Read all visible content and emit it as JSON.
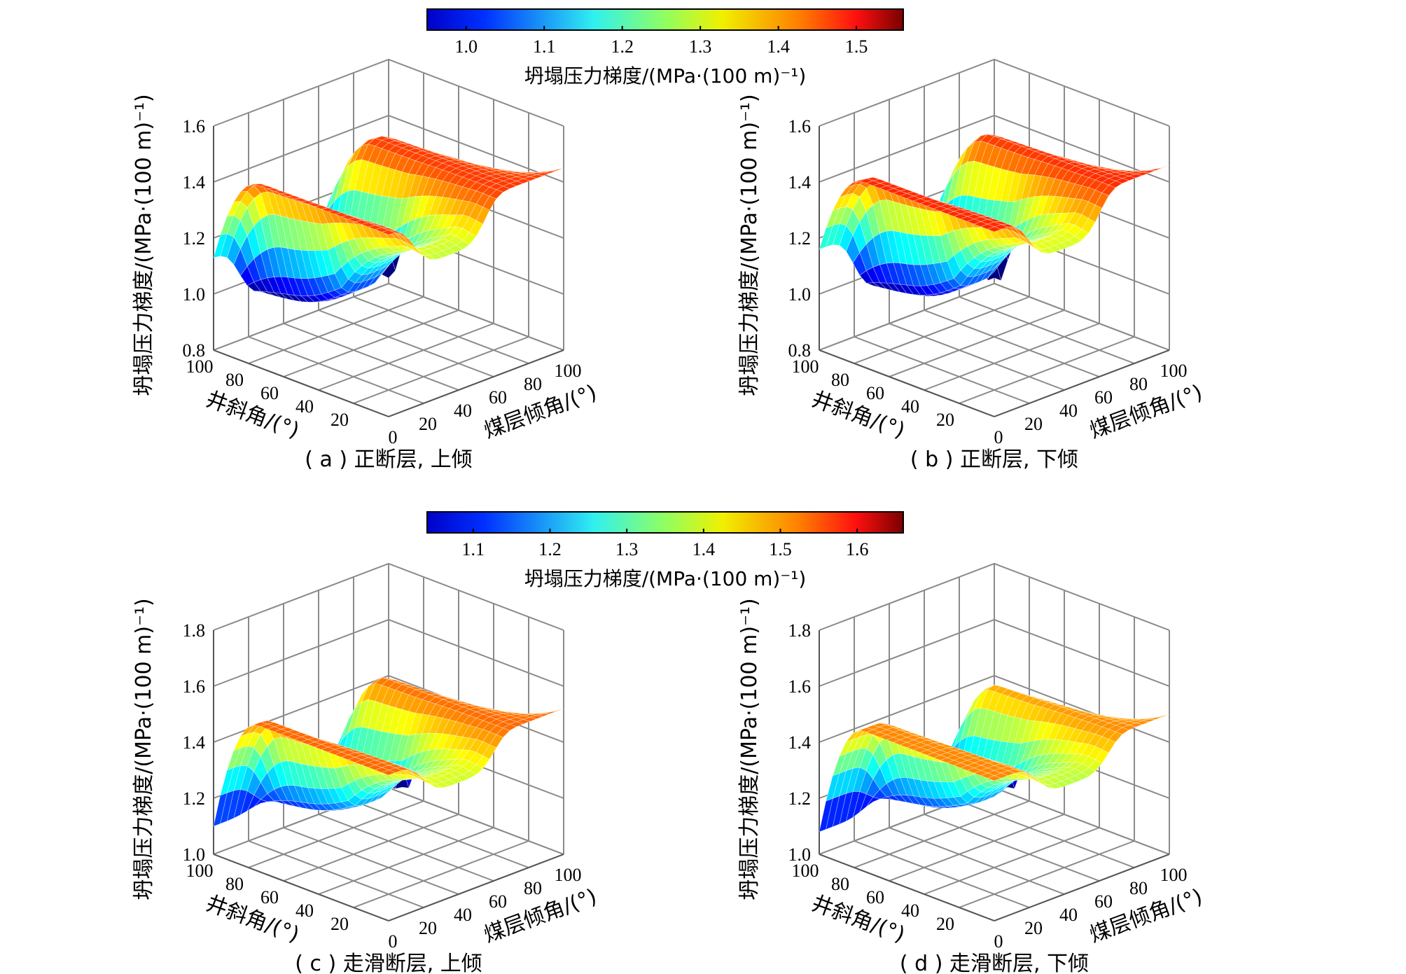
{
  "figure": {
    "colorbars": [
      {
        "ticks": [
          "1.0",
          "1.1",
          "1.2",
          "1.3",
          "1.4",
          "1.5"
        ],
        "range": [
          0.95,
          1.56
        ],
        "label": "坍塌压力梯度/(MPa·(100 m)⁻¹)"
      },
      {
        "ticks": [
          "1.1",
          "1.2",
          "1.3",
          "1.4",
          "1.5",
          "1.6"
        ],
        "range": [
          1.04,
          1.66
        ],
        "label": "坍塌压力梯度/(MPa·(100 m)⁻¹)"
      }
    ]
  },
  "chart_data": [
    {
      "type": "surface",
      "caption": "( a ) 正断层, 上倾",
      "xlabel": "煤层倾角/(°)",
      "ylabel": "井斜角/(°)",
      "zlabel": "坍塌压力梯度/(MPa·(100 m)⁻¹)",
      "x_ticks": [
        "0",
        "20",
        "40",
        "60",
        "80",
        "100"
      ],
      "y_ticks": [
        "20",
        "40",
        "60",
        "80",
        "100"
      ],
      "z_ticks": [
        "0.8",
        "1.0",
        "1.2",
        "1.4",
        "1.6"
      ],
      "xlim": [
        0,
        100
      ],
      "ylim": [
        0,
        100
      ],
      "zlim": [
        0.8,
        1.6
      ],
      "surface": {
        "base": 1.45,
        "center_min": 0.94,
        "center_x": 35,
        "center_width": 22,
        "high_y_drop": 0.32,
        "edge_x_drop": 0.38,
        "edge_x_dir": "high"
      }
    },
    {
      "type": "surface",
      "caption": "( b ) 正断层, 下倾",
      "xlabel": "煤层倾角/(°)",
      "ylabel": "井斜角/(°)",
      "zlabel": "坍塌压力梯度/(MPa·(100 m)⁻¹)",
      "x_ticks": [
        "0",
        "20",
        "40",
        "60",
        "80",
        "100"
      ],
      "y_ticks": [
        "20",
        "40",
        "60",
        "80",
        "100"
      ],
      "z_ticks": [
        "0.8",
        "1.0",
        "1.2",
        "1.4",
        "1.6"
      ],
      "xlim": [
        0,
        100
      ],
      "ylim": [
        0,
        100
      ],
      "zlim": [
        0.8,
        1.6
      ],
      "surface": {
        "base": 1.46,
        "center_min": 0.95,
        "center_x": 40,
        "center_width": 22,
        "high_y_drop": 0.3,
        "edge_x_drop": 0.45,
        "edge_x_dir": "high"
      }
    },
    {
      "type": "surface",
      "caption": "( c ) 走滑断层, 上倾",
      "xlabel": "煤层倾角/(°)",
      "ylabel": "井斜角/(°)",
      "zlabel": "坍塌压力梯度/(MPa·(100 m)⁻¹)",
      "x_ticks": [
        "0",
        "20",
        "40",
        "60",
        "80",
        "100"
      ],
      "y_ticks": [
        "20",
        "40",
        "60",
        "80",
        "100"
      ],
      "z_ticks": [
        "1.0",
        "1.2",
        "1.4",
        "1.6",
        "1.8"
      ],
      "xlim": [
        0,
        100
      ],
      "ylim": [
        0,
        100
      ],
      "zlim": [
        1.0,
        1.8
      ],
      "surface": {
        "base": 1.52,
        "center_min": 1.12,
        "center_x": 40,
        "center_width": 22,
        "high_y_drop": 0.42,
        "edge_x_drop": 0.42,
        "edge_x_dir": "high"
      }
    },
    {
      "type": "surface",
      "caption": "( d ) 走滑断层, 下倾",
      "xlabel": "煤层倾角/(°)",
      "ylabel": "井斜角/(°)",
      "zlabel": "坍塌压力梯度/(MPa·(100 m)⁻¹)",
      "x_ticks": [
        "0",
        "20",
        "40",
        "60",
        "80",
        "100"
      ],
      "y_ticks": [
        "20",
        "40",
        "60",
        "80",
        "100"
      ],
      "z_ticks": [
        "1.0",
        "1.2",
        "1.4",
        "1.6",
        "1.8"
      ],
      "xlim": [
        0,
        100
      ],
      "ylim": [
        0,
        100
      ],
      "zlim": [
        1.0,
        1.8
      ],
      "surface": {
        "base": 1.5,
        "center_min": 1.12,
        "center_x": 45,
        "center_width": 22,
        "high_y_drop": 0.42,
        "edge_x_drop": 0.4,
        "edge_x_dir": "high"
      }
    }
  ]
}
